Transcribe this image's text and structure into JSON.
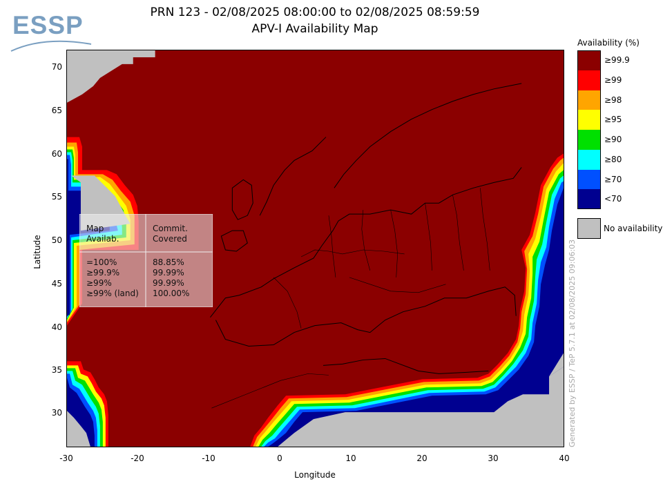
{
  "header": {
    "title_line1": "PRN 123 - 02/08/2025 08:00:00 to 02/08/2025 08:59:59",
    "title_line2": "APV-I Availability Map",
    "logo_text": "ESSP"
  },
  "axes": {
    "xlabel": "Longitude",
    "ylabel": "Latitude",
    "xticks": [
      "-30",
      "-20",
      "-10",
      "0",
      "10",
      "20",
      "30",
      "40"
    ],
    "yticks": [
      "70",
      "65",
      "60",
      "55",
      "50",
      "45",
      "40",
      "35",
      "30"
    ],
    "xlim": [
      -30,
      40
    ],
    "ylim": [
      26,
      72
    ]
  },
  "legend": {
    "title": "Availability (%)",
    "levels": [
      {
        "label": "≥99.9",
        "color": "#8b0000"
      },
      {
        "label": "≥99",
        "color": "#ff0000"
      },
      {
        "label": "≥98",
        "color": "#ffa500"
      },
      {
        "label": "≥95",
        "color": "#ffff00"
      },
      {
        "label": "≥90",
        "color": "#00e000"
      },
      {
        "label": "≥80",
        "color": "#00ffff"
      },
      {
        "label": "≥70",
        "color": "#0050ff"
      },
      {
        "label": "<70",
        "color": "#000090"
      }
    ],
    "no_availability_label": "No availability",
    "no_availability_color": "#c0c0c0"
  },
  "table": {
    "headers": [
      "Map\nAvailab.",
      "Commit.\nCovered"
    ],
    "rows": [
      [
        "=100%",
        "88.85%"
      ],
      [
        "≥99.9%",
        "99.99%"
      ],
      [
        "≥99%",
        "99.99%"
      ],
      [
        "≥99% (land)",
        "100.00%"
      ]
    ]
  },
  "credit": "Generated by ESSP / TeP 5.7.1 at 02/08/2025 09:06:03"
}
